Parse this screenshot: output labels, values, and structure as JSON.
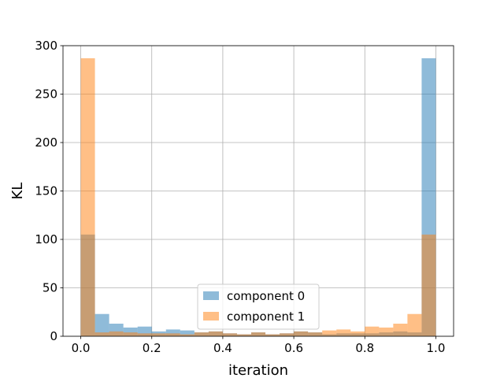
{
  "chart_data": {
    "type": "bar",
    "xlabel": "iteration",
    "ylabel": "KL",
    "xlim": [
      -0.05,
      1.05
    ],
    "ylim": [
      0,
      300
    ],
    "grid": true,
    "legend_placement": "bottom-center",
    "x_ticks": [
      "0.0",
      "0.2",
      "0.4",
      "0.6",
      "0.8",
      "1.0"
    ],
    "y_ticks": [
      "0",
      "50",
      "100",
      "150",
      "200",
      "250",
      "300"
    ],
    "bin_edges": [
      0.0,
      0.04,
      0.08,
      0.12,
      0.16,
      0.2,
      0.24,
      0.28,
      0.32,
      0.36,
      0.4,
      0.44,
      0.48,
      0.52,
      0.56,
      0.6,
      0.64,
      0.68,
      0.72,
      0.76,
      0.8,
      0.84,
      0.88,
      0.92,
      0.96,
      1.0
    ],
    "series": [
      {
        "name": "component 0",
        "color": "#1f77b4",
        "values": [
          105,
          23,
          13,
          9,
          10,
          5,
          7,
          6,
          4,
          5,
          3,
          2,
          4,
          2,
          3,
          5,
          4,
          2,
          3,
          3,
          3,
          4,
          5,
          4,
          287
        ]
      },
      {
        "name": "component 1",
        "color": "#ff7f0e",
        "values": [
          287,
          4,
          5,
          4,
          3,
          3,
          3,
          2,
          4,
          5,
          3,
          2,
          4,
          2,
          3,
          5,
          4,
          6,
          7,
          5,
          10,
          9,
          13,
          23,
          105
        ]
      }
    ]
  }
}
